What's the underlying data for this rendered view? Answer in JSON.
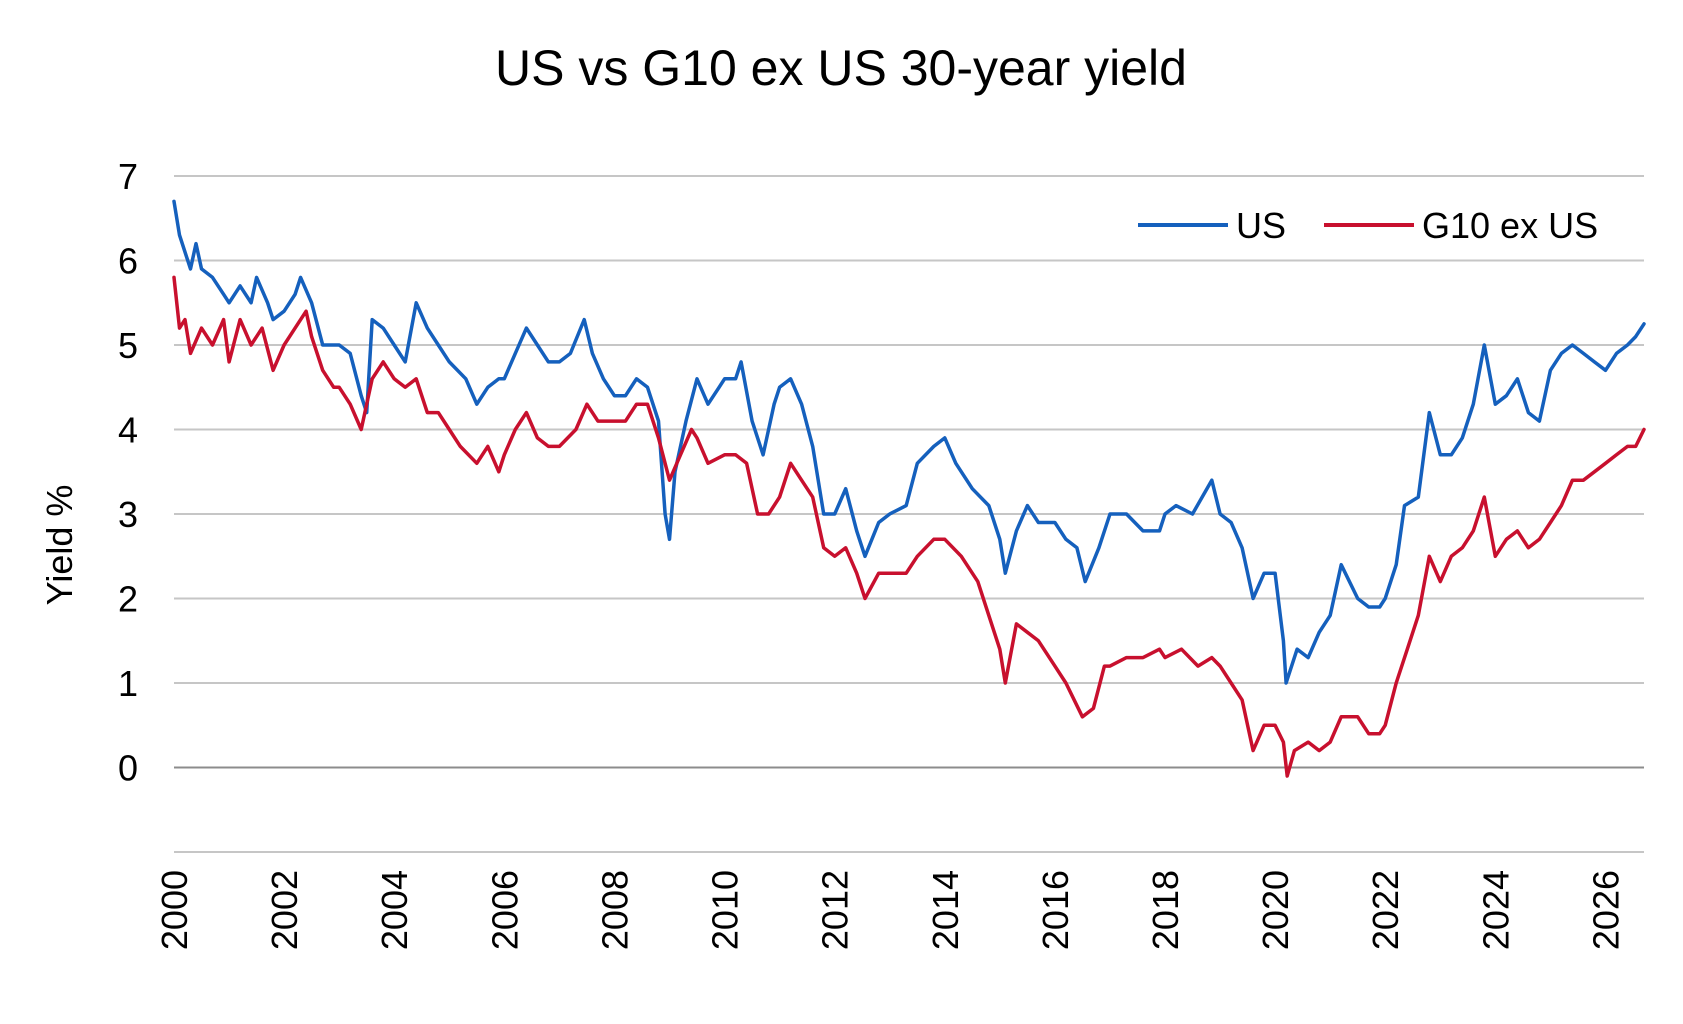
{
  "chart_data": {
    "type": "line",
    "title": "US vs G10 ex US 30-year yield",
    "xlabel": "",
    "ylabel": "Yield %",
    "x_ticks": [
      "2000",
      "2002",
      "2004",
      "2006",
      "2008",
      "2010",
      "2012",
      "2014",
      "2016",
      "2018",
      "2020",
      "2022",
      "2024",
      "2026"
    ],
    "y_ticks": [
      "0",
      "1",
      "2",
      "3",
      "4",
      "5",
      "6",
      "7"
    ],
    "xlim": [
      2000.0,
      2026.7
    ],
    "ylim": [
      -1,
      7
    ],
    "grid": true,
    "legend_position": "top-right",
    "series": [
      {
        "name": "US",
        "color": "#1560bd",
        "points": [
          [
            2000.0,
            6.7
          ],
          [
            2000.1,
            6.3
          ],
          [
            2000.2,
            6.1
          ],
          [
            2000.3,
            5.9
          ],
          [
            2000.4,
            6.2
          ],
          [
            2000.5,
            5.9
          ],
          [
            2000.7,
            5.8
          ],
          [
            2000.9,
            5.6
          ],
          [
            2001.0,
            5.5
          ],
          [
            2001.2,
            5.7
          ],
          [
            2001.4,
            5.5
          ],
          [
            2001.5,
            5.8
          ],
          [
            2001.7,
            5.5
          ],
          [
            2001.8,
            5.3
          ],
          [
            2002.0,
            5.4
          ],
          [
            2002.2,
            5.6
          ],
          [
            2002.3,
            5.8
          ],
          [
            2002.5,
            5.5
          ],
          [
            2002.7,
            5.0
          ],
          [
            2002.8,
            5.0
          ],
          [
            2003.0,
            5.0
          ],
          [
            2003.2,
            4.9
          ],
          [
            2003.4,
            4.4
          ],
          [
            2003.5,
            4.2
          ],
          [
            2003.6,
            5.3
          ],
          [
            2003.8,
            5.2
          ],
          [
            2004.0,
            5.0
          ],
          [
            2004.2,
            4.8
          ],
          [
            2004.4,
            5.5
          ],
          [
            2004.6,
            5.2
          ],
          [
            2004.8,
            5.0
          ],
          [
            2005.0,
            4.8
          ],
          [
            2005.3,
            4.6
          ],
          [
            2005.5,
            4.3
          ],
          [
            2005.7,
            4.5
          ],
          [
            2005.9,
            4.6
          ],
          [
            2006.0,
            4.6
          ],
          [
            2006.2,
            4.9
          ],
          [
            2006.4,
            5.2
          ],
          [
            2006.6,
            5.0
          ],
          [
            2006.8,
            4.8
          ],
          [
            2007.0,
            4.8
          ],
          [
            2007.2,
            4.9
          ],
          [
            2007.45,
            5.3
          ],
          [
            2007.6,
            4.9
          ],
          [
            2007.8,
            4.6
          ],
          [
            2008.0,
            4.4
          ],
          [
            2008.2,
            4.4
          ],
          [
            2008.4,
            4.6
          ],
          [
            2008.6,
            4.5
          ],
          [
            2008.8,
            4.1
          ],
          [
            2008.92,
            3.0
          ],
          [
            2009.0,
            2.7
          ],
          [
            2009.1,
            3.5
          ],
          [
            2009.3,
            4.1
          ],
          [
            2009.5,
            4.6
          ],
          [
            2009.7,
            4.3
          ],
          [
            2009.9,
            4.5
          ],
          [
            2010.0,
            4.6
          ],
          [
            2010.2,
            4.6
          ],
          [
            2010.3,
            4.8
          ],
          [
            2010.5,
            4.1
          ],
          [
            2010.7,
            3.7
          ],
          [
            2010.9,
            4.3
          ],
          [
            2011.0,
            4.5
          ],
          [
            2011.2,
            4.6
          ],
          [
            2011.4,
            4.3
          ],
          [
            2011.6,
            3.8
          ],
          [
            2011.8,
            3.0
          ],
          [
            2012.0,
            3.0
          ],
          [
            2012.2,
            3.3
          ],
          [
            2012.4,
            2.8
          ],
          [
            2012.55,
            2.5
          ],
          [
            2012.8,
            2.9
          ],
          [
            2013.0,
            3.0
          ],
          [
            2013.3,
            3.1
          ],
          [
            2013.5,
            3.6
          ],
          [
            2013.8,
            3.8
          ],
          [
            2014.0,
            3.9
          ],
          [
            2014.2,
            3.6
          ],
          [
            2014.5,
            3.3
          ],
          [
            2014.8,
            3.1
          ],
          [
            2015.0,
            2.7
          ],
          [
            2015.1,
            2.3
          ],
          [
            2015.3,
            2.8
          ],
          [
            2015.5,
            3.1
          ],
          [
            2015.7,
            2.9
          ],
          [
            2016.0,
            2.9
          ],
          [
            2016.2,
            2.7
          ],
          [
            2016.4,
            2.6
          ],
          [
            2016.55,
            2.2
          ],
          [
            2016.8,
            2.6
          ],
          [
            2017.0,
            3.0
          ],
          [
            2017.3,
            3.0
          ],
          [
            2017.6,
            2.8
          ],
          [
            2017.9,
            2.8
          ],
          [
            2018.0,
            3.0
          ],
          [
            2018.2,
            3.1
          ],
          [
            2018.5,
            3.0
          ],
          [
            2018.85,
            3.4
          ],
          [
            2019.0,
            3.0
          ],
          [
            2019.2,
            2.9
          ],
          [
            2019.4,
            2.6
          ],
          [
            2019.6,
            2.0
          ],
          [
            2019.8,
            2.3
          ],
          [
            2020.0,
            2.3
          ],
          [
            2020.15,
            1.5
          ],
          [
            2020.2,
            1.0
          ],
          [
            2020.4,
            1.4
          ],
          [
            2020.6,
            1.3
          ],
          [
            2020.8,
            1.6
          ],
          [
            2021.0,
            1.8
          ],
          [
            2021.2,
            2.4
          ],
          [
            2021.5,
            2.0
          ],
          [
            2021.7,
            1.9
          ],
          [
            2021.9,
            1.9
          ],
          [
            2022.0,
            2.0
          ],
          [
            2022.2,
            2.4
          ],
          [
            2022.35,
            3.1
          ],
          [
            2022.6,
            3.2
          ],
          [
            2022.8,
            4.2
          ],
          [
            2023.0,
            3.7
          ],
          [
            2023.2,
            3.7
          ],
          [
            2023.4,
            3.9
          ],
          [
            2023.6,
            4.3
          ],
          [
            2023.8,
            5.0
          ],
          [
            2024.0,
            4.3
          ],
          [
            2024.2,
            4.4
          ],
          [
            2024.4,
            4.6
          ],
          [
            2024.6,
            4.2
          ],
          [
            2024.8,
            4.1
          ],
          [
            2025.0,
            4.7
          ],
          [
            2025.2,
            4.9
          ],
          [
            2025.4,
            5.0
          ],
          [
            2025.6,
            4.9
          ],
          [
            2025.8,
            4.8
          ],
          [
            2026.0,
            4.7
          ],
          [
            2026.2,
            4.9
          ],
          [
            2026.4,
            5.0
          ],
          [
            2026.55,
            5.1
          ],
          [
            2026.7,
            5.25
          ]
        ]
      },
      {
        "name": "G10 ex US",
        "color": "#c8102e",
        "points": [
          [
            2000.0,
            5.8
          ],
          [
            2000.1,
            5.2
          ],
          [
            2000.2,
            5.3
          ],
          [
            2000.3,
            4.9
          ],
          [
            2000.5,
            5.2
          ],
          [
            2000.7,
            5.0
          ],
          [
            2000.9,
            5.3
          ],
          [
            2001.0,
            4.8
          ],
          [
            2001.2,
            5.3
          ],
          [
            2001.4,
            5.0
          ],
          [
            2001.6,
            5.2
          ],
          [
            2001.8,
            4.7
          ],
          [
            2002.0,
            5.0
          ],
          [
            2002.2,
            5.2
          ],
          [
            2002.4,
            5.4
          ],
          [
            2002.5,
            5.1
          ],
          [
            2002.7,
            4.7
          ],
          [
            2002.9,
            4.5
          ],
          [
            2003.0,
            4.5
          ],
          [
            2003.2,
            4.3
          ],
          [
            2003.4,
            4.0
          ],
          [
            2003.6,
            4.6
          ],
          [
            2003.8,
            4.8
          ],
          [
            2004.0,
            4.6
          ],
          [
            2004.2,
            4.5
          ],
          [
            2004.4,
            4.6
          ],
          [
            2004.6,
            4.2
          ],
          [
            2004.8,
            4.2
          ],
          [
            2005.0,
            4.0
          ],
          [
            2005.2,
            3.8
          ],
          [
            2005.5,
            3.6
          ],
          [
            2005.7,
            3.8
          ],
          [
            2005.9,
            3.5
          ],
          [
            2006.0,
            3.7
          ],
          [
            2006.2,
            4.0
          ],
          [
            2006.4,
            4.2
          ],
          [
            2006.6,
            3.9
          ],
          [
            2006.8,
            3.8
          ],
          [
            2007.0,
            3.8
          ],
          [
            2007.3,
            4.0
          ],
          [
            2007.5,
            4.3
          ],
          [
            2007.7,
            4.1
          ],
          [
            2008.0,
            4.1
          ],
          [
            2008.2,
            4.1
          ],
          [
            2008.4,
            4.3
          ],
          [
            2008.6,
            4.3
          ],
          [
            2008.8,
            3.9
          ],
          [
            2009.0,
            3.4
          ],
          [
            2009.2,
            3.7
          ],
          [
            2009.4,
            4.0
          ],
          [
            2009.5,
            3.9
          ],
          [
            2009.7,
            3.6
          ],
          [
            2010.0,
            3.7
          ],
          [
            2010.2,
            3.7
          ],
          [
            2010.4,
            3.6
          ],
          [
            2010.6,
            3.0
          ],
          [
            2010.8,
            3.0
          ],
          [
            2011.0,
            3.2
          ],
          [
            2011.2,
            3.6
          ],
          [
            2011.4,
            3.4
          ],
          [
            2011.6,
            3.2
          ],
          [
            2011.8,
            2.6
          ],
          [
            2012.0,
            2.5
          ],
          [
            2012.2,
            2.6
          ],
          [
            2012.4,
            2.3
          ],
          [
            2012.55,
            2.0
          ],
          [
            2012.8,
            2.3
          ],
          [
            2013.0,
            2.3
          ],
          [
            2013.3,
            2.3
          ],
          [
            2013.5,
            2.5
          ],
          [
            2013.8,
            2.7
          ],
          [
            2014.0,
            2.7
          ],
          [
            2014.3,
            2.5
          ],
          [
            2014.6,
            2.2
          ],
          [
            2014.9,
            1.6
          ],
          [
            2015.0,
            1.4
          ],
          [
            2015.1,
            1.0
          ],
          [
            2015.3,
            1.7
          ],
          [
            2015.5,
            1.6
          ],
          [
            2015.7,
            1.5
          ],
          [
            2016.0,
            1.2
          ],
          [
            2016.2,
            1.0
          ],
          [
            2016.5,
            0.6
          ],
          [
            2016.7,
            0.7
          ],
          [
            2016.9,
            1.2
          ],
          [
            2017.0,
            1.2
          ],
          [
            2017.3,
            1.3
          ],
          [
            2017.6,
            1.3
          ],
          [
            2017.9,
            1.4
          ],
          [
            2018.0,
            1.3
          ],
          [
            2018.3,
            1.4
          ],
          [
            2018.6,
            1.2
          ],
          [
            2018.85,
            1.3
          ],
          [
            2019.0,
            1.2
          ],
          [
            2019.2,
            1.0
          ],
          [
            2019.4,
            0.8
          ],
          [
            2019.6,
            0.2
          ],
          [
            2019.8,
            0.5
          ],
          [
            2020.0,
            0.5
          ],
          [
            2020.15,
            0.3
          ],
          [
            2020.22,
            -0.1
          ],
          [
            2020.35,
            0.2
          ],
          [
            2020.6,
            0.3
          ],
          [
            2020.8,
            0.2
          ],
          [
            2021.0,
            0.3
          ],
          [
            2021.2,
            0.6
          ],
          [
            2021.5,
            0.6
          ],
          [
            2021.7,
            0.4
          ],
          [
            2021.9,
            0.4
          ],
          [
            2022.0,
            0.5
          ],
          [
            2022.2,
            1.0
          ],
          [
            2022.4,
            1.4
          ],
          [
            2022.6,
            1.8
          ],
          [
            2022.8,
            2.5
          ],
          [
            2023.0,
            2.2
          ],
          [
            2023.2,
            2.5
          ],
          [
            2023.4,
            2.6
          ],
          [
            2023.6,
            2.8
          ],
          [
            2023.8,
            3.2
          ],
          [
            2024.0,
            2.5
          ],
          [
            2024.2,
            2.7
          ],
          [
            2024.4,
            2.8
          ],
          [
            2024.6,
            2.6
          ],
          [
            2024.8,
            2.7
          ],
          [
            2025.0,
            2.9
          ],
          [
            2025.2,
            3.1
          ],
          [
            2025.4,
            3.4
          ],
          [
            2025.6,
            3.4
          ],
          [
            2025.8,
            3.5
          ],
          [
            2026.0,
            3.6
          ],
          [
            2026.2,
            3.7
          ],
          [
            2026.4,
            3.8
          ],
          [
            2026.55,
            3.8
          ],
          [
            2026.7,
            4.0
          ]
        ]
      }
    ]
  }
}
